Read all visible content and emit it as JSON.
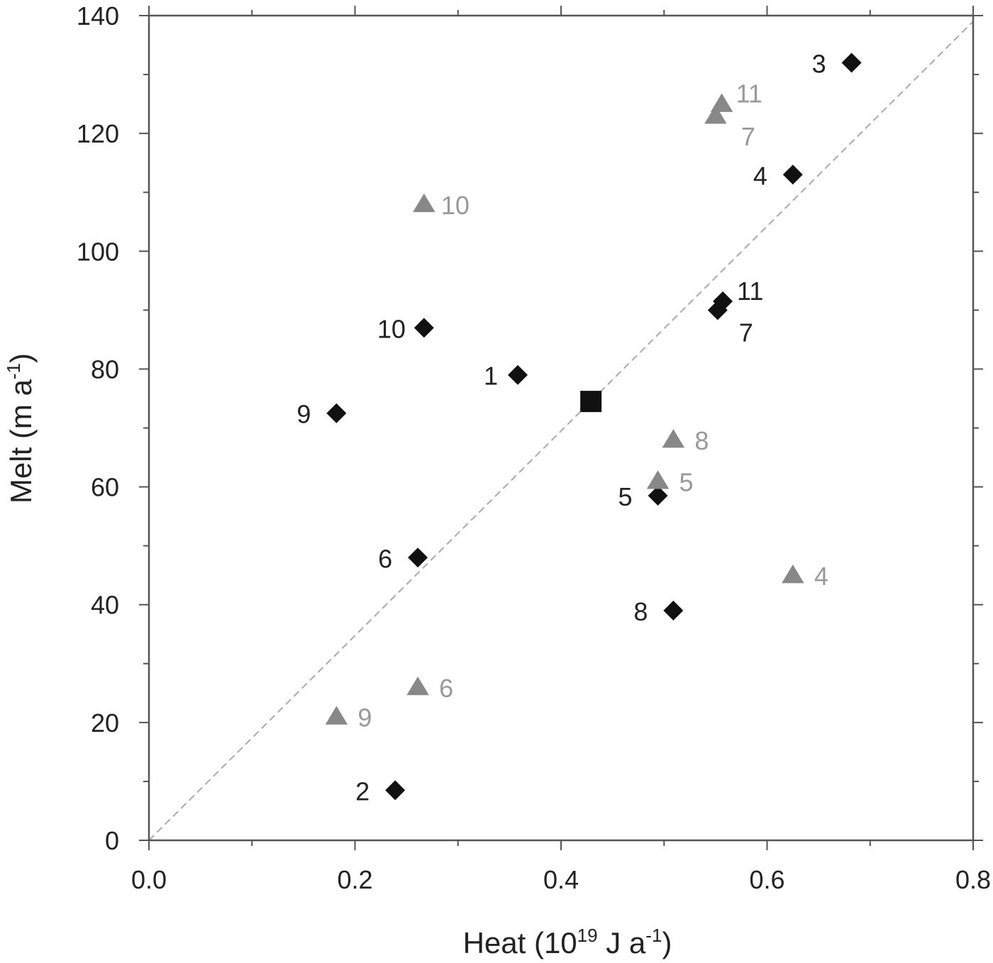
{
  "chart_data": {
    "type": "scatter",
    "xlabel": {
      "base": "Heat (10",
      "sup1": "19",
      "mid": " J a",
      "sup2": "-1",
      "end": ")"
    },
    "ylabel": {
      "base": "Melt (m a",
      "sup": "-1",
      "end": ")"
    },
    "xlim": [
      0,
      0.8
    ],
    "ylim": [
      0,
      140
    ],
    "x_ticks": [
      "0.0",
      "0.2",
      "0.4",
      "0.6",
      "0.8"
    ],
    "y_ticks": [
      "0",
      "20",
      "40",
      "60",
      "80",
      "100",
      "120",
      "140"
    ],
    "reference_line": {
      "style": "dashed",
      "from": [
        0,
        0
      ],
      "to": [
        0.8,
        139
      ]
    },
    "colors": {
      "diamond": "#111111",
      "triangle": "#888888",
      "triangle_label": "#999999",
      "reference": "#aaaaaa"
    },
    "series": [
      {
        "marker": "diamond",
        "points": [
          {
            "label": "1",
            "x": 0.358,
            "y": 79
          },
          {
            "label": "2",
            "x": 0.239,
            "y": 8.5
          },
          {
            "label": "3",
            "x": 0.682,
            "y": 132
          },
          {
            "label": "4",
            "x": 0.625,
            "y": 113
          },
          {
            "label": "5",
            "x": 0.494,
            "y": 58.5
          },
          {
            "label": "6",
            "x": 0.261,
            "y": 48
          },
          {
            "label": "7",
            "x": 0.552,
            "y": 90
          },
          {
            "label": "8",
            "x": 0.509,
            "y": 39
          },
          {
            "label": "9",
            "x": 0.182,
            "y": 72.5
          },
          {
            "label": "10",
            "x": 0.267,
            "y": 87
          },
          {
            "label": "11",
            "x": 0.557,
            "y": 91.5
          }
        ]
      },
      {
        "marker": "triangle",
        "points": [
          {
            "label": "4",
            "x": 0.625,
            "y": 45
          },
          {
            "label": "5",
            "x": 0.494,
            "y": 61
          },
          {
            "label": "6",
            "x": 0.261,
            "y": 26
          },
          {
            "label": "7",
            "x": 0.55,
            "y": 123
          },
          {
            "label": "8",
            "x": 0.509,
            "y": 68
          },
          {
            "label": "9",
            "x": 0.182,
            "y": 21
          },
          {
            "label": "10",
            "x": 0.267,
            "y": 108
          },
          {
            "label": "11",
            "x": 0.556,
            "y": 125
          }
        ]
      },
      {
        "marker": "square",
        "points": [
          {
            "x": 0.429,
            "y": 74.5
          }
        ]
      }
    ]
  }
}
